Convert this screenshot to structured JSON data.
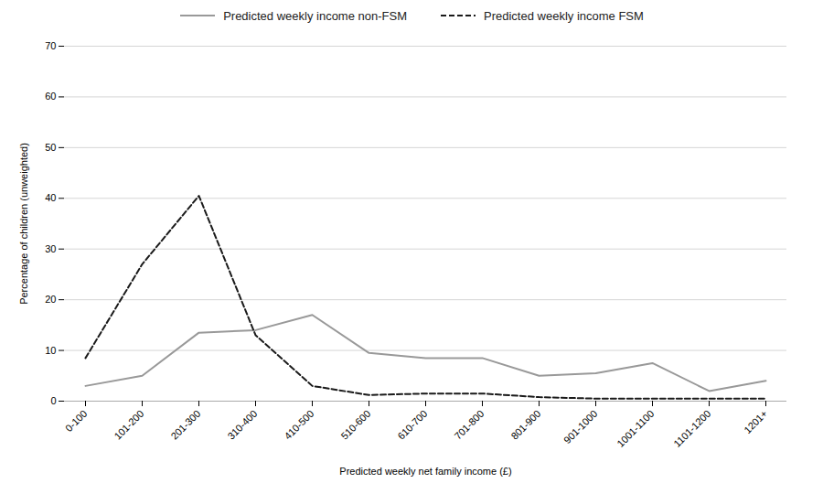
{
  "chart_data": {
    "type": "line",
    "categories": [
      "0-100",
      "101-200",
      "201-300",
      "310-400",
      "410-500",
      "510-600",
      "610-700",
      "701-800",
      "801-900",
      "901-1000",
      "1001-1100",
      "1101-1200",
      "1201+"
    ],
    "series": [
      {
        "name": "Predicted weekly income non-FSM",
        "color": "#999999",
        "line_style": "solid",
        "values": [
          3,
          5,
          13.5,
          14,
          17,
          9.5,
          8.5,
          8.5,
          5,
          5.5,
          7.5,
          2,
          4
        ]
      },
      {
        "name": "Predicted weekly income FSM",
        "color": "#1a1a1a",
        "line_style": "dashed",
        "values": [
          8.5,
          27,
          40.5,
          13,
          3,
          1.2,
          1.5,
          1.5,
          0.8,
          0.5,
          0.5,
          0.5,
          0.5
        ]
      }
    ],
    "xlabel": "Predicted weekly net family income (£)",
    "ylabel": "Percentage of children (unweighted)",
    "ylim": [
      0,
      70
    ],
    "yticks": [
      0,
      10,
      20,
      30,
      40,
      50,
      60,
      70
    ],
    "grid": true,
    "legend": "top"
  }
}
